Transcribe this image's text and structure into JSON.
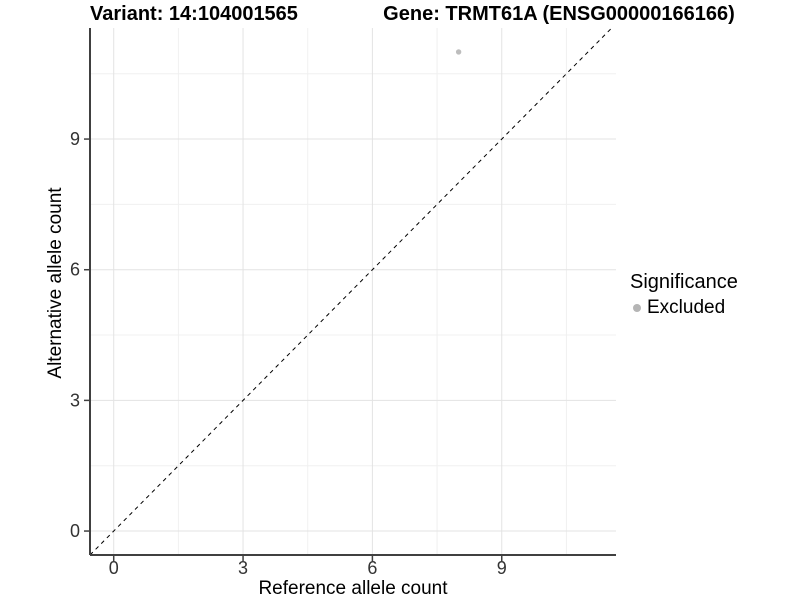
{
  "header": {
    "variant_title": "Variant: 14:104001565",
    "gene_title": "Gene: TRMT61A (ENSG00000166166)"
  },
  "chart_data": {
    "type": "scatter",
    "xlabel": "Reference allele count",
    "ylabel": "Alternative allele count",
    "x_ticks": [
      0,
      3,
      6,
      9
    ],
    "y_ticks": [
      0,
      3,
      6,
      9
    ],
    "x_minor_ticks": [
      1.5,
      4.5,
      7.5,
      10.5
    ],
    "y_minor_ticks": [
      1.5,
      4.5,
      7.5,
      10.5
    ],
    "xlim": [
      -0.55,
      11.65
    ],
    "ylim": [
      -0.55,
      11.55
    ],
    "grid": true,
    "legend_position": "right",
    "points": [
      {
        "x": 8,
        "y": 11,
        "significance": "Excluded"
      }
    ],
    "reference_line": {
      "kind": "diagonal y=x",
      "slope": 1,
      "intercept": 0,
      "style": "dashed"
    }
  },
  "legend": {
    "title": "Significance",
    "items": [
      {
        "label": "Excluded",
        "color": "#b5b5b5"
      }
    ]
  },
  "colors": {
    "background": "#ffffff",
    "point": "#bdbdbd",
    "grid_major": "#e3e3e3",
    "grid_minor": "#f0f0f0",
    "axis_line": "#404040",
    "tick_text": "#333333",
    "reference_line": "#000000"
  }
}
